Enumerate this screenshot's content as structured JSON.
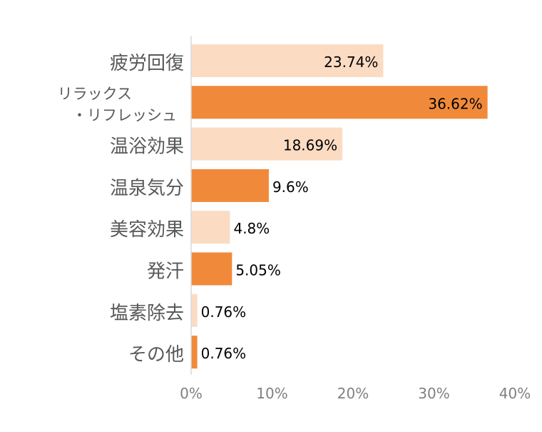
{
  "chart_data": {
    "type": "bar",
    "orientation": "horizontal",
    "categories": [
      "疲労回復",
      "リラックス・リフレッシュ",
      "温浴効果",
      "温泉気分",
      "美容効果",
      "発汗",
      "塩素除去",
      "その他"
    ],
    "category_display_lines": [
      [
        "疲労回復"
      ],
      [
        "リラックス",
        "・リフレッシュ"
      ],
      [
        "温浴効果"
      ],
      [
        "温泉気分"
      ],
      [
        "美容効果"
      ],
      [
        "発汗"
      ],
      [
        "塩素除去"
      ],
      [
        "その他"
      ]
    ],
    "values": [
      23.74,
      36.62,
      18.69,
      9.6,
      4.8,
      5.05,
      0.76,
      0.76
    ],
    "value_labels": [
      "23.74%",
      "36.62%",
      "18.69%",
      "9.6%",
      "4.8%",
      "5.05%",
      "0.76%",
      "0.76%"
    ],
    "bar_colors": [
      "#FBDCC3",
      "#F08A3A",
      "#FBDCC3",
      "#F08A3A",
      "#FBDCC3",
      "#F08A3A",
      "#FBDCC3",
      "#F08A3A"
    ],
    "xlim": [
      0,
      40
    ],
    "xticks": [
      0,
      10,
      20,
      30,
      40
    ],
    "xtick_labels": [
      "0%",
      "10%",
      "20%",
      "30%",
      "40%"
    ],
    "grid": false,
    "legend": "none",
    "colors": {
      "light_bar": "#FBDCC3",
      "dark_bar": "#F08A3A",
      "axis_line": "#D9D9D9",
      "category_text": "#595959",
      "tick_text": "#808080",
      "value_text": "#000000"
    }
  }
}
